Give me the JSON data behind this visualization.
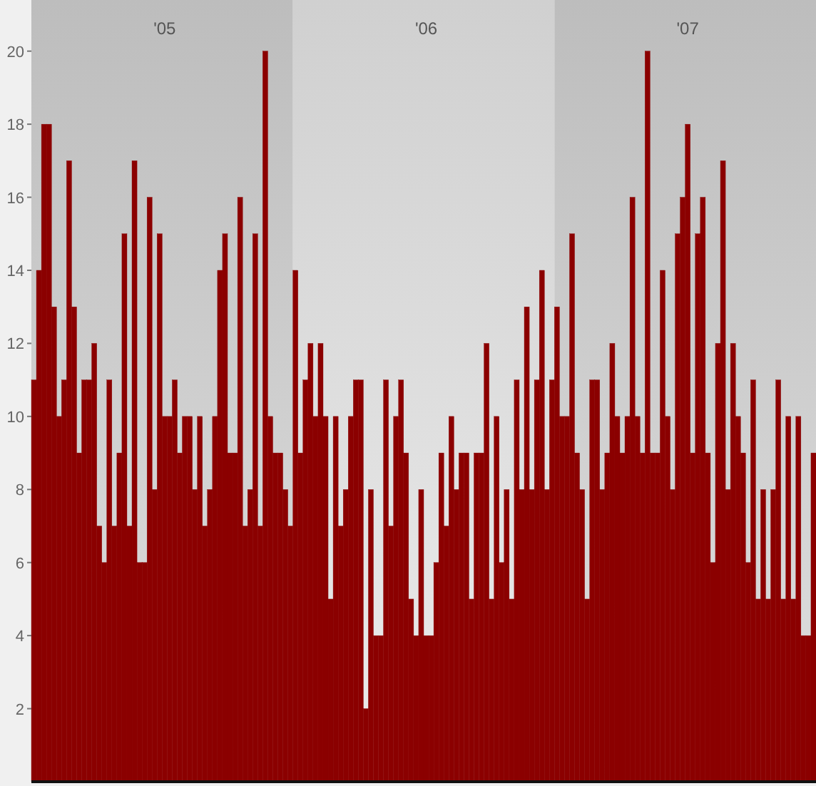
{
  "chart_data": {
    "type": "bar",
    "categories": [
      null,
      null,
      null,
      null,
      null,
      null,
      null,
      null,
      null,
      null,
      null,
      null,
      null,
      null,
      null,
      null,
      null,
      null,
      null,
      null,
      null,
      null,
      null,
      null,
      null,
      null,
      "'05",
      null,
      null,
      null,
      null,
      null,
      null,
      null,
      null,
      null,
      null,
      null,
      null,
      null,
      null,
      null,
      null,
      null,
      null,
      null,
      null,
      null,
      null,
      null,
      null,
      null,
      null,
      null,
      null,
      null,
      null,
      null,
      null,
      null,
      null,
      null,
      null,
      null,
      null,
      null,
      null,
      null,
      null,
      null,
      null,
      null,
      null,
      null,
      null,
      null,
      null,
      null,
      "'06",
      null,
      null,
      null,
      null,
      null,
      null,
      null,
      null,
      null,
      null,
      null,
      null,
      null,
      null,
      null,
      null,
      null,
      null,
      null,
      null,
      null,
      null,
      null,
      null,
      null,
      null,
      null,
      null,
      null,
      null,
      null,
      null,
      null,
      null,
      null,
      null,
      null,
      null,
      null,
      null,
      null,
      null,
      null,
      null,
      null,
      null,
      null,
      null,
      null,
      null,
      null,
      "'07",
      null,
      null,
      null,
      null,
      null,
      null,
      null,
      null,
      null,
      null,
      null,
      null,
      null,
      null,
      null,
      null,
      null,
      null,
      null,
      null,
      null,
      null,
      null,
      null,
      null
    ],
    "values": [
      11,
      14,
      18,
      18,
      13,
      10,
      11,
      17,
      13,
      9,
      11,
      11,
      12,
      7,
      6,
      11,
      7,
      9,
      15,
      7,
      17,
      6,
      6,
      16,
      8,
      15,
      10,
      10,
      11,
      9,
      10,
      10,
      8,
      10,
      7,
      8,
      10,
      14,
      15,
      9,
      9,
      16,
      7,
      8,
      15,
      7,
      20,
      10,
      9,
      9,
      8,
      7,
      14,
      9,
      11,
      12,
      10,
      12,
      10,
      5,
      10,
      7,
      8,
      10,
      11,
      11,
      2,
      8,
      4,
      4,
      11,
      7,
      10,
      11,
      9,
      5,
      4,
      8,
      4,
      4,
      6,
      9,
      7,
      10,
      8,
      9,
      9,
      5,
      9,
      9,
      12,
      5,
      10,
      6,
      8,
      5,
      11,
      8,
      13,
      8,
      11,
      14,
      8,
      11,
      13,
      10,
      10,
      15,
      9,
      8,
      5,
      11,
      11,
      8,
      9,
      12,
      10,
      9,
      10,
      16,
      10,
      9,
      20,
      9,
      9,
      14,
      10,
      8,
      15,
      16,
      18,
      9,
      15,
      16,
      9,
      6,
      12,
      17,
      8,
      12,
      10,
      9,
      6,
      11,
      5,
      8,
      5,
      8,
      11,
      5,
      10,
      5,
      10,
      4,
      4,
      9
    ],
    "color": "#8b0000",
    "ylim": [
      0,
      21.4
    ],
    "yticks": [
      2,
      4,
      6,
      8,
      10,
      12,
      14,
      16,
      18,
      20
    ]
  }
}
